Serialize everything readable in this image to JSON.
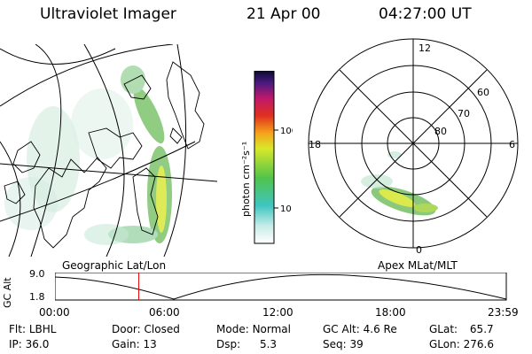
{
  "header": {
    "instrument": "Ultraviolet Imager",
    "date": "21 Apr 00",
    "time": "04:27:00 UT"
  },
  "colorbar": {
    "unit_label": "photon cm⁻²s⁻¹",
    "ticks": [
      "100",
      "10"
    ]
  },
  "polar_plot": {
    "mlt_labels": [
      "12",
      "18",
      "6",
      "0"
    ],
    "lat_labels": [
      "60",
      "70",
      "80"
    ]
  },
  "panel_labels": {
    "left": "Geographic Lat/Lon",
    "right": "Apex MLat/MLT"
  },
  "altitude_plot": {
    "ylabel": "GC Alt",
    "yticks": [
      "9.0",
      "1.8"
    ],
    "xticks": [
      "00:00",
      "06:00",
      "12:00",
      "18:00",
      "23:59"
    ],
    "marker_time": "04:27",
    "marker_color": "#e00000"
  },
  "info": {
    "row1": [
      {
        "label": "Flt:",
        "value": "LBHL"
      },
      {
        "label": "Door:",
        "value": "Closed"
      },
      {
        "label": "Mode:",
        "value": "Normal"
      },
      {
        "label": "GC Alt:",
        "value": "4.6 Re"
      },
      {
        "label": "GLat:",
        "value": "65.7"
      }
    ],
    "row2": [
      {
        "label": "IP:",
        "value": "36.0"
      },
      {
        "label": "Gain:",
        "value": "13"
      },
      {
        "label": "Dsp:",
        "value": "5.3"
      },
      {
        "label": "Seq:",
        "value": "39"
      },
      {
        "label": "GLon:",
        "value": "276.6"
      }
    ]
  }
}
